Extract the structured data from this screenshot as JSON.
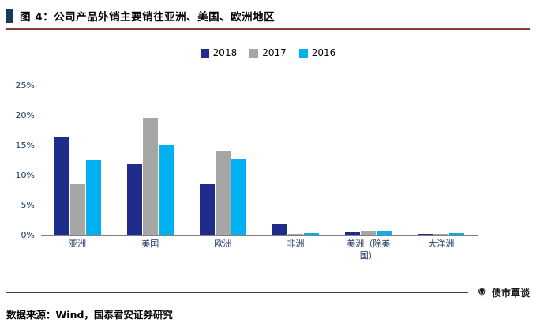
{
  "header": {
    "title": "图 4：公司产品外销主要销往亚洲、美国、欧洲地区"
  },
  "chart_data": {
    "type": "bar",
    "title": "公司产品外销主要销往亚洲、美国、欧洲地区",
    "categories": [
      "亚洲",
      "美国",
      "欧洲",
      "非洲",
      "美洲（除美国）",
      "大洋洲"
    ],
    "series": [
      {
        "name": "2018",
        "color": "#1F2C8C",
        "values": [
          16.3,
          11.8,
          8.4,
          1.9,
          0.5,
          0.1
        ]
      },
      {
        "name": "2017",
        "color": "#A6A6A6",
        "values": [
          8.6,
          19.5,
          14.0,
          0.1,
          0.6,
          0.05
        ]
      },
      {
        "name": "2016",
        "color": "#00B0F0",
        "values": [
          12.5,
          15.0,
          12.6,
          0.3,
          0.7,
          0.3
        ]
      }
    ],
    "xlabel": "",
    "ylabel": "",
    "ylim": [
      0,
      25
    ],
    "yticks": [
      "0%",
      "5%",
      "10%",
      "15%",
      "20%",
      "25%"
    ],
    "legend_position": "top",
    "grid": false
  },
  "footer": {
    "source": "数据来源：Wind，国泰君安证券研究",
    "watermark": "债市覃谈"
  },
  "colors": {
    "title_bar": "#17375E",
    "title_underline": "#8B3A3A",
    "axis_label": "#1F3864",
    "axis_line": "#7f7f7f",
    "footer_line": "#3d3d3d"
  }
}
